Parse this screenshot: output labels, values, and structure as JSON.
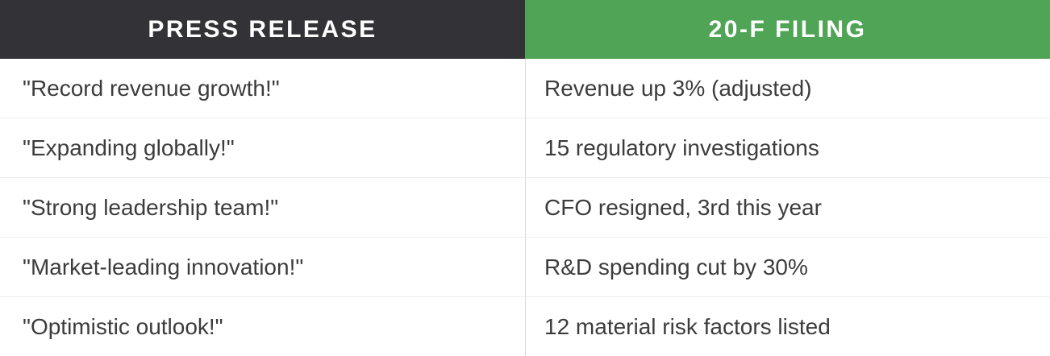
{
  "chart_data": {
    "type": "table",
    "columns": [
      "PRESS RELEASE",
      "20-F FILING"
    ],
    "rows": [
      [
        "\"Record revenue growth!\"",
        "Revenue up 3% (adjusted)"
      ],
      [
        "\"Expanding globally!\"",
        "15 regulatory investigations"
      ],
      [
        "\"Strong leadership team!\"",
        "CFO resigned, 3rd this year"
      ],
      [
        "\"Market-leading innovation!\"",
        "R&D spending cut by 30%"
      ],
      [
        "\"Optimistic outlook!\"",
        "12 material risk factors listed"
      ]
    ],
    "title": "",
    "legend_position": "none",
    "grid": "row-and-column-dividers"
  },
  "colors": {
    "header_dark_bg": "#333236",
    "header_green_bg": "#4FA455",
    "header_text": "#FFFFFF",
    "body_text": "#3C3C3C",
    "row_divider": "#EDEDED",
    "column_divider": "#DBDBDB",
    "row_bg": "#FFFFFF"
  }
}
